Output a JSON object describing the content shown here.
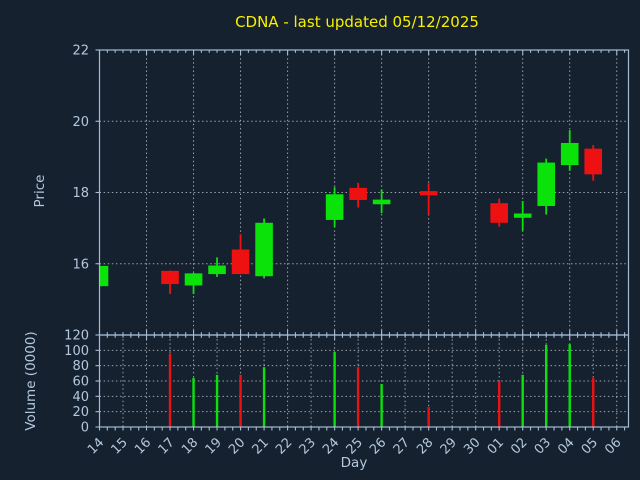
{
  "title": "CDNA - last updated 05/12/2025",
  "colors": {
    "background": "#16212f",
    "axis": "#a3bcd4",
    "tick_text": "#b3c7dd",
    "grid": "#c6ccd3",
    "up": "#0ae20a",
    "down": "#ee1111",
    "title_text": "#f8f000"
  },
  "chart_data": {
    "type": "candlestick",
    "title": "CDNA - last updated 05/12/2025",
    "xlabel": "Day",
    "x_categories": [
      "14",
      "15",
      "16",
      "17",
      "18",
      "19",
      "20",
      "21",
      "22",
      "23",
      "24",
      "25",
      "26",
      "27",
      "28",
      "29",
      "30",
      "01",
      "02",
      "03",
      "04",
      "05",
      "06"
    ],
    "price": {
      "ylabel": "Price",
      "ylim": [
        14,
        22
      ],
      "yticks": [
        16,
        18,
        20,
        22
      ],
      "grid": "dotted; vertical line every 2 days, horizontal every 2 price units"
    },
    "volume": {
      "ylabel": "Volume (0000)",
      "ylim": [
        0,
        120
      ],
      "yticks": [
        0,
        20,
        40,
        60,
        80,
        100,
        120
      ],
      "grid": "dotted; vertical line every day, horizontal every 20 units"
    },
    "candles": [
      {
        "day": "14",
        "index": 0,
        "open": 15.37,
        "high": 15.94,
        "low": 15.36,
        "close": 15.94,
        "volume": null,
        "direction": "up"
      },
      {
        "day": "17",
        "index": 3,
        "open": 15.8,
        "high": 15.81,
        "low": 15.15,
        "close": 15.43,
        "volume": 96,
        "direction": "down"
      },
      {
        "day": "18",
        "index": 4,
        "open": 15.39,
        "high": 15.74,
        "low": 15.15,
        "close": 15.73,
        "volume": 64,
        "direction": "up"
      },
      {
        "day": "19",
        "index": 5,
        "open": 15.71,
        "high": 16.18,
        "low": 15.63,
        "close": 15.95,
        "volume": 68,
        "direction": "up"
      },
      {
        "day": "20",
        "index": 6,
        "open": 16.4,
        "high": 16.83,
        "low": 15.71,
        "close": 15.71,
        "volume": 68,
        "direction": "down"
      },
      {
        "day": "21",
        "index": 7,
        "open": 15.65,
        "high": 17.27,
        "low": 15.59,
        "close": 17.15,
        "volume": 78,
        "direction": "up"
      },
      {
        "day": "24",
        "index": 10,
        "open": 17.23,
        "high": 18.15,
        "low": 17.03,
        "close": 17.95,
        "volume": 98,
        "direction": "up"
      },
      {
        "day": "25",
        "index": 11,
        "open": 18.13,
        "high": 18.27,
        "low": 17.58,
        "close": 17.79,
        "volume": 78,
        "direction": "down"
      },
      {
        "day": "26",
        "index": 12,
        "open": 17.67,
        "high": 18.09,
        "low": 17.42,
        "close": 17.8,
        "volume": 56,
        "direction": "up"
      },
      {
        "day": "28",
        "index": 14,
        "open": 18.04,
        "high": 18.26,
        "low": 17.38,
        "close": 17.92,
        "volume": 26,
        "direction": "down"
      },
      {
        "day": "01",
        "index": 17,
        "open": 17.7,
        "high": 17.83,
        "low": 17.04,
        "close": 17.15,
        "volume": 60,
        "direction": "down"
      },
      {
        "day": "02",
        "index": 18,
        "open": 17.29,
        "high": 17.76,
        "low": 16.93,
        "close": 17.41,
        "volume": 68,
        "direction": "up"
      },
      {
        "day": "03",
        "index": 19,
        "open": 17.62,
        "high": 18.95,
        "low": 17.38,
        "close": 18.84,
        "volume": 107,
        "direction": "up"
      },
      {
        "day": "04",
        "index": 20,
        "open": 18.77,
        "high": 19.75,
        "low": 18.61,
        "close": 19.39,
        "volume": 108,
        "direction": "up"
      },
      {
        "day": "05",
        "index": 21,
        "open": 19.23,
        "high": 19.33,
        "low": 18.33,
        "close": 18.51,
        "volume": 64,
        "direction": "down"
      }
    ]
  }
}
